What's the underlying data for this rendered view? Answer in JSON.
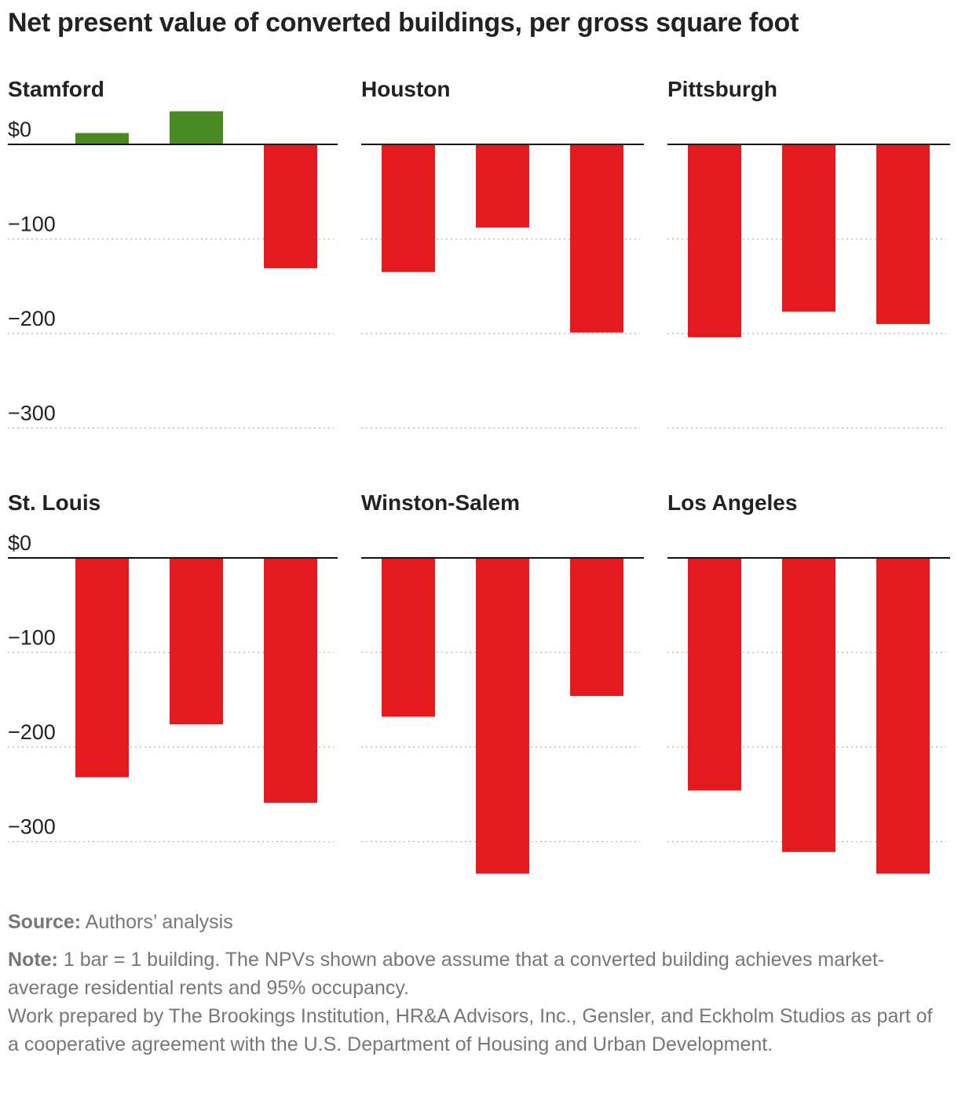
{
  "title": "Net present value of converted buildings, per gross square foot",
  "colors": {
    "positive": "#4a8a23",
    "negative": "#e31b1f",
    "axis": "#111111",
    "grid": "#bbbbbb",
    "text": "#222222"
  },
  "footer": {
    "source_label": "Source:",
    "source_text": "Authors’ analysis",
    "note_label": "Note:",
    "note_text": "1 bar = 1 building. The NPVs shown above assume that a converted building achieves market-average residential rents and 95% occupancy.",
    "credit_text": "Work prepared by The Brookings Institution, HR&A Advisors, Inc., Gensler, and Eckholm Studios as part of a cooperative agreement with the U.S. Department of Housing and Urban Development."
  },
  "chart_data": {
    "type": "bar",
    "title": "Net present value of converted buildings, per gross square foot",
    "ylim": [
      -330,
      35
    ],
    "yticks": [
      0,
      -100,
      -200,
      -300
    ],
    "ytick_labels": [
      "$0",
      "−100",
      "−200",
      "−300"
    ],
    "grid": true,
    "panels": [
      {
        "name": "Stamford",
        "values": [
          12,
          35,
          -131
        ]
      },
      {
        "name": "Houston",
        "values": [
          -135,
          -88,
          -199
        ]
      },
      {
        "name": "Pittsburgh",
        "values": [
          -204,
          -177,
          -190
        ]
      },
      {
        "name": "St. Louis",
        "values": [
          -232,
          -176,
          -259
        ]
      },
      {
        "name": "Winston-Salem",
        "values": [
          -168,
          -334,
          -146
        ]
      },
      {
        "name": "Los Angeles",
        "values": [
          -246,
          -311,
          -334
        ]
      }
    ]
  }
}
